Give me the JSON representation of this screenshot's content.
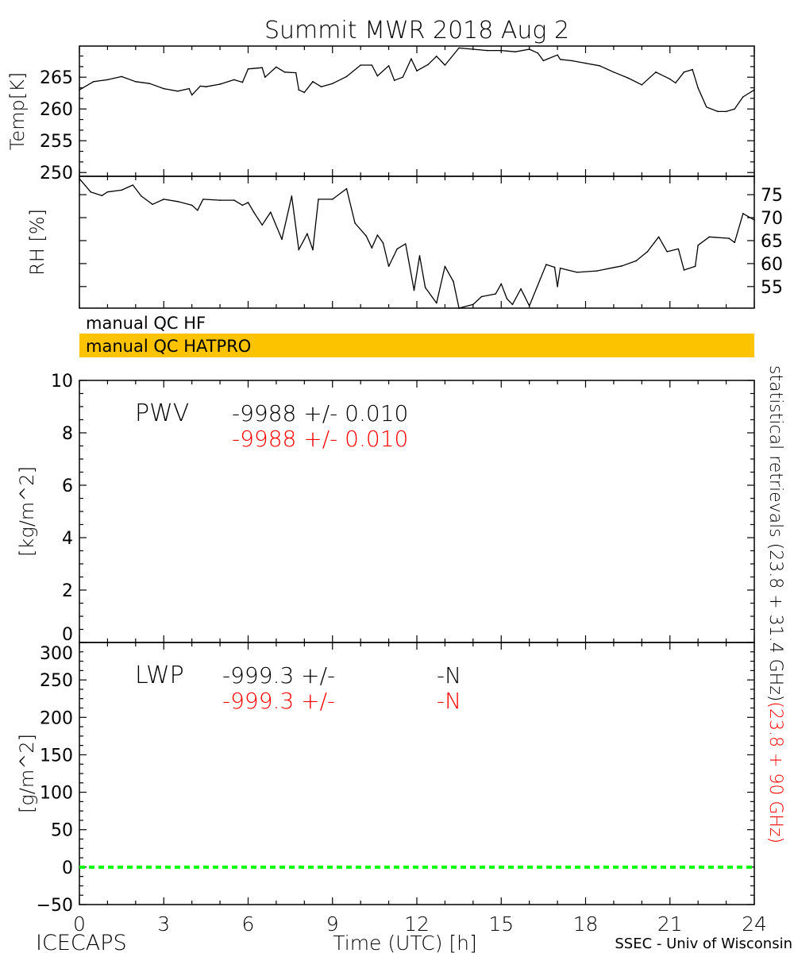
{
  "title": "Summit MWR 2018 Aug  2",
  "qc": {
    "hf_label": "manual QC HF",
    "hatpro_label": "manual QC HATPRO",
    "hatpro_color": "#fcc400"
  },
  "right_caption": {
    "black": "statistical retrievals (23.8 + 31.4 GHz)",
    "red": "(23.8 + 90 GHz)"
  },
  "footer": {
    "left": "ICECAPS",
    "xlabel": "Time (UTC) [h]",
    "right": "SSEC - Univ of Wisconsin"
  },
  "colors": {
    "black": "#000000",
    "red": "#ff0000",
    "green": "#00ff00"
  },
  "chart_data": [
    {
      "type": "line",
      "ylabel": "Temp[K]",
      "xlim": [
        0,
        24
      ],
      "ylim": [
        249.4,
        269.9
      ],
      "yticks": [
        250,
        255,
        260,
        265
      ],
      "ytick_side": "left",
      "series": [
        {
          "color": "#000000",
          "x": [
            0,
            0.5,
            1,
            1.5,
            2,
            2.5,
            3,
            3.5,
            3.9,
            4,
            4.3,
            4.5,
            5,
            5.5,
            5.8,
            6,
            6.5,
            6.6,
            7,
            7.3,
            7.7,
            7.8,
            8,
            8.3,
            8.6,
            9,
            9.5,
            10,
            10.4,
            10.6,
            11,
            11.2,
            11.5,
            11.8,
            12,
            12.4,
            12.7,
            13,
            13.5,
            14,
            14.5,
            15,
            15.5,
            16,
            16.3,
            16.5,
            17,
            17.1,
            17.5,
            18,
            18.5,
            19,
            19.5,
            20,
            20.5,
            21,
            21.2,
            21.5,
            21.8,
            22,
            22.3,
            22.7,
            23,
            23.3,
            23.6,
            24
          ],
          "y": [
            263.0,
            264.3,
            264.6,
            265.1,
            264.3,
            264.0,
            263.2,
            262.8,
            263.2,
            262.2,
            263.6,
            263.5,
            263.9,
            264.6,
            264.2,
            266.3,
            266.5,
            265.0,
            266.6,
            265.8,
            265.7,
            263.0,
            262.6,
            264.3,
            263.5,
            264.0,
            265.1,
            266.9,
            266.9,
            265.2,
            266.8,
            264.5,
            265.0,
            267.9,
            266.0,
            267.0,
            268.3,
            266.9,
            269.6,
            269.4,
            269.2,
            269.2,
            269.0,
            269.4,
            268.8,
            267.6,
            268.5,
            267.8,
            267.6,
            267.2,
            266.8,
            265.8,
            264.9,
            263.8,
            265.8,
            264.7,
            264.1,
            265.8,
            266.2,
            263.3,
            260.3,
            259.6,
            259.6,
            260.0,
            261.9,
            263.0
          ]
        }
      ]
    },
    {
      "type": "line",
      "ylabel": "RH [%]",
      "xlim": [
        0,
        24
      ],
      "ylim": [
        50.3,
        79.0
      ],
      "yticks": [
        55,
        60,
        65,
        70,
        75
      ],
      "ytick_side": "right",
      "series": [
        {
          "color": "#000000",
          "x": [
            0,
            0.4,
            0.8,
            1,
            1.5,
            1.9,
            2.2,
            2.6,
            3,
            3.5,
            4,
            4.2,
            4.4,
            5,
            5.5,
            5.8,
            6,
            6.2,
            6.5,
            6.8,
            7.2,
            7.55,
            7.8,
            8.1,
            8.3,
            8.5,
            9,
            9.5,
            9.8,
            10.2,
            10.4,
            10.6,
            10.8,
            11,
            11.3,
            11.6,
            11.9,
            12.1,
            12.3,
            12.7,
            13.0,
            13.3,
            13.5,
            14.0,
            14.3,
            14.8,
            15.0,
            15.2,
            15.4,
            15.7,
            16.0,
            16.6,
            16.9,
            17.0,
            17.1,
            17.7,
            18.4,
            19.3,
            19.8,
            20.2,
            20.6,
            20.9,
            21.3,
            21.5,
            21.9,
            22.0,
            22.4,
            23.1,
            23.3,
            23.6,
            24
          ],
          "y": [
            78.5,
            75.6,
            74.8,
            75.6,
            76.0,
            77.1,
            74.7,
            72.9,
            74.0,
            73.5,
            72.7,
            71.6,
            74.0,
            73.8,
            73.8,
            72.7,
            73.3,
            71.2,
            68.4,
            71.2,
            65.3,
            74.7,
            63.0,
            66.5,
            63.0,
            74.0,
            74.0,
            76.3,
            68.8,
            66.0,
            63.4,
            66.2,
            64.5,
            59.4,
            63.2,
            64.3,
            54.2,
            61.7,
            54.8,
            51.4,
            59.4,
            56.1,
            50.3,
            51.1,
            52.8,
            53.4,
            55.6,
            52.4,
            51.1,
            54.5,
            50.8,
            59.8,
            59.2,
            55.0,
            59.0,
            58.1,
            58.4,
            59.5,
            60.6,
            62.6,
            65.8,
            62.6,
            63.2,
            58.6,
            59.4,
            64.0,
            65.8,
            65.5,
            64.6,
            70.9,
            69.5
          ]
        }
      ]
    },
    {
      "type": "line",
      "ylabel": "[kg/m^2]",
      "xlim": [
        0,
        24
      ],
      "ylim": [
        0,
        10
      ],
      "yticks": [
        0,
        2,
        4,
        6,
        8,
        10
      ],
      "ytick_side": "left",
      "annotation": {
        "name": "PWV",
        "value_black": "-9988 +/- 0.010",
        "value_red": "-9988 +/- 0.010"
      },
      "series": []
    },
    {
      "type": "line",
      "ylabel": "[g/m^2]",
      "xlabel": "Time (UTC) [h]",
      "xlim": [
        0,
        24
      ],
      "ylim": [
        -50,
        300
      ],
      "yticks": [
        -50,
        0,
        50,
        100,
        150,
        200,
        250,
        300
      ],
      "ytick_side": "left",
      "xticks": [
        0,
        3,
        6,
        9,
        12,
        15,
        18,
        21,
        24
      ],
      "annotation": {
        "name": "LWP",
        "value_black": "-999.3 +/-",
        "value_black_err": "-N",
        "value_red": "-999.3 +/-",
        "value_red_err": "-N"
      },
      "series": [
        {
          "color": "#00ff00",
          "style": "dashed",
          "x": [
            0,
            24
          ],
          "y": [
            0,
            0
          ]
        }
      ]
    }
  ]
}
